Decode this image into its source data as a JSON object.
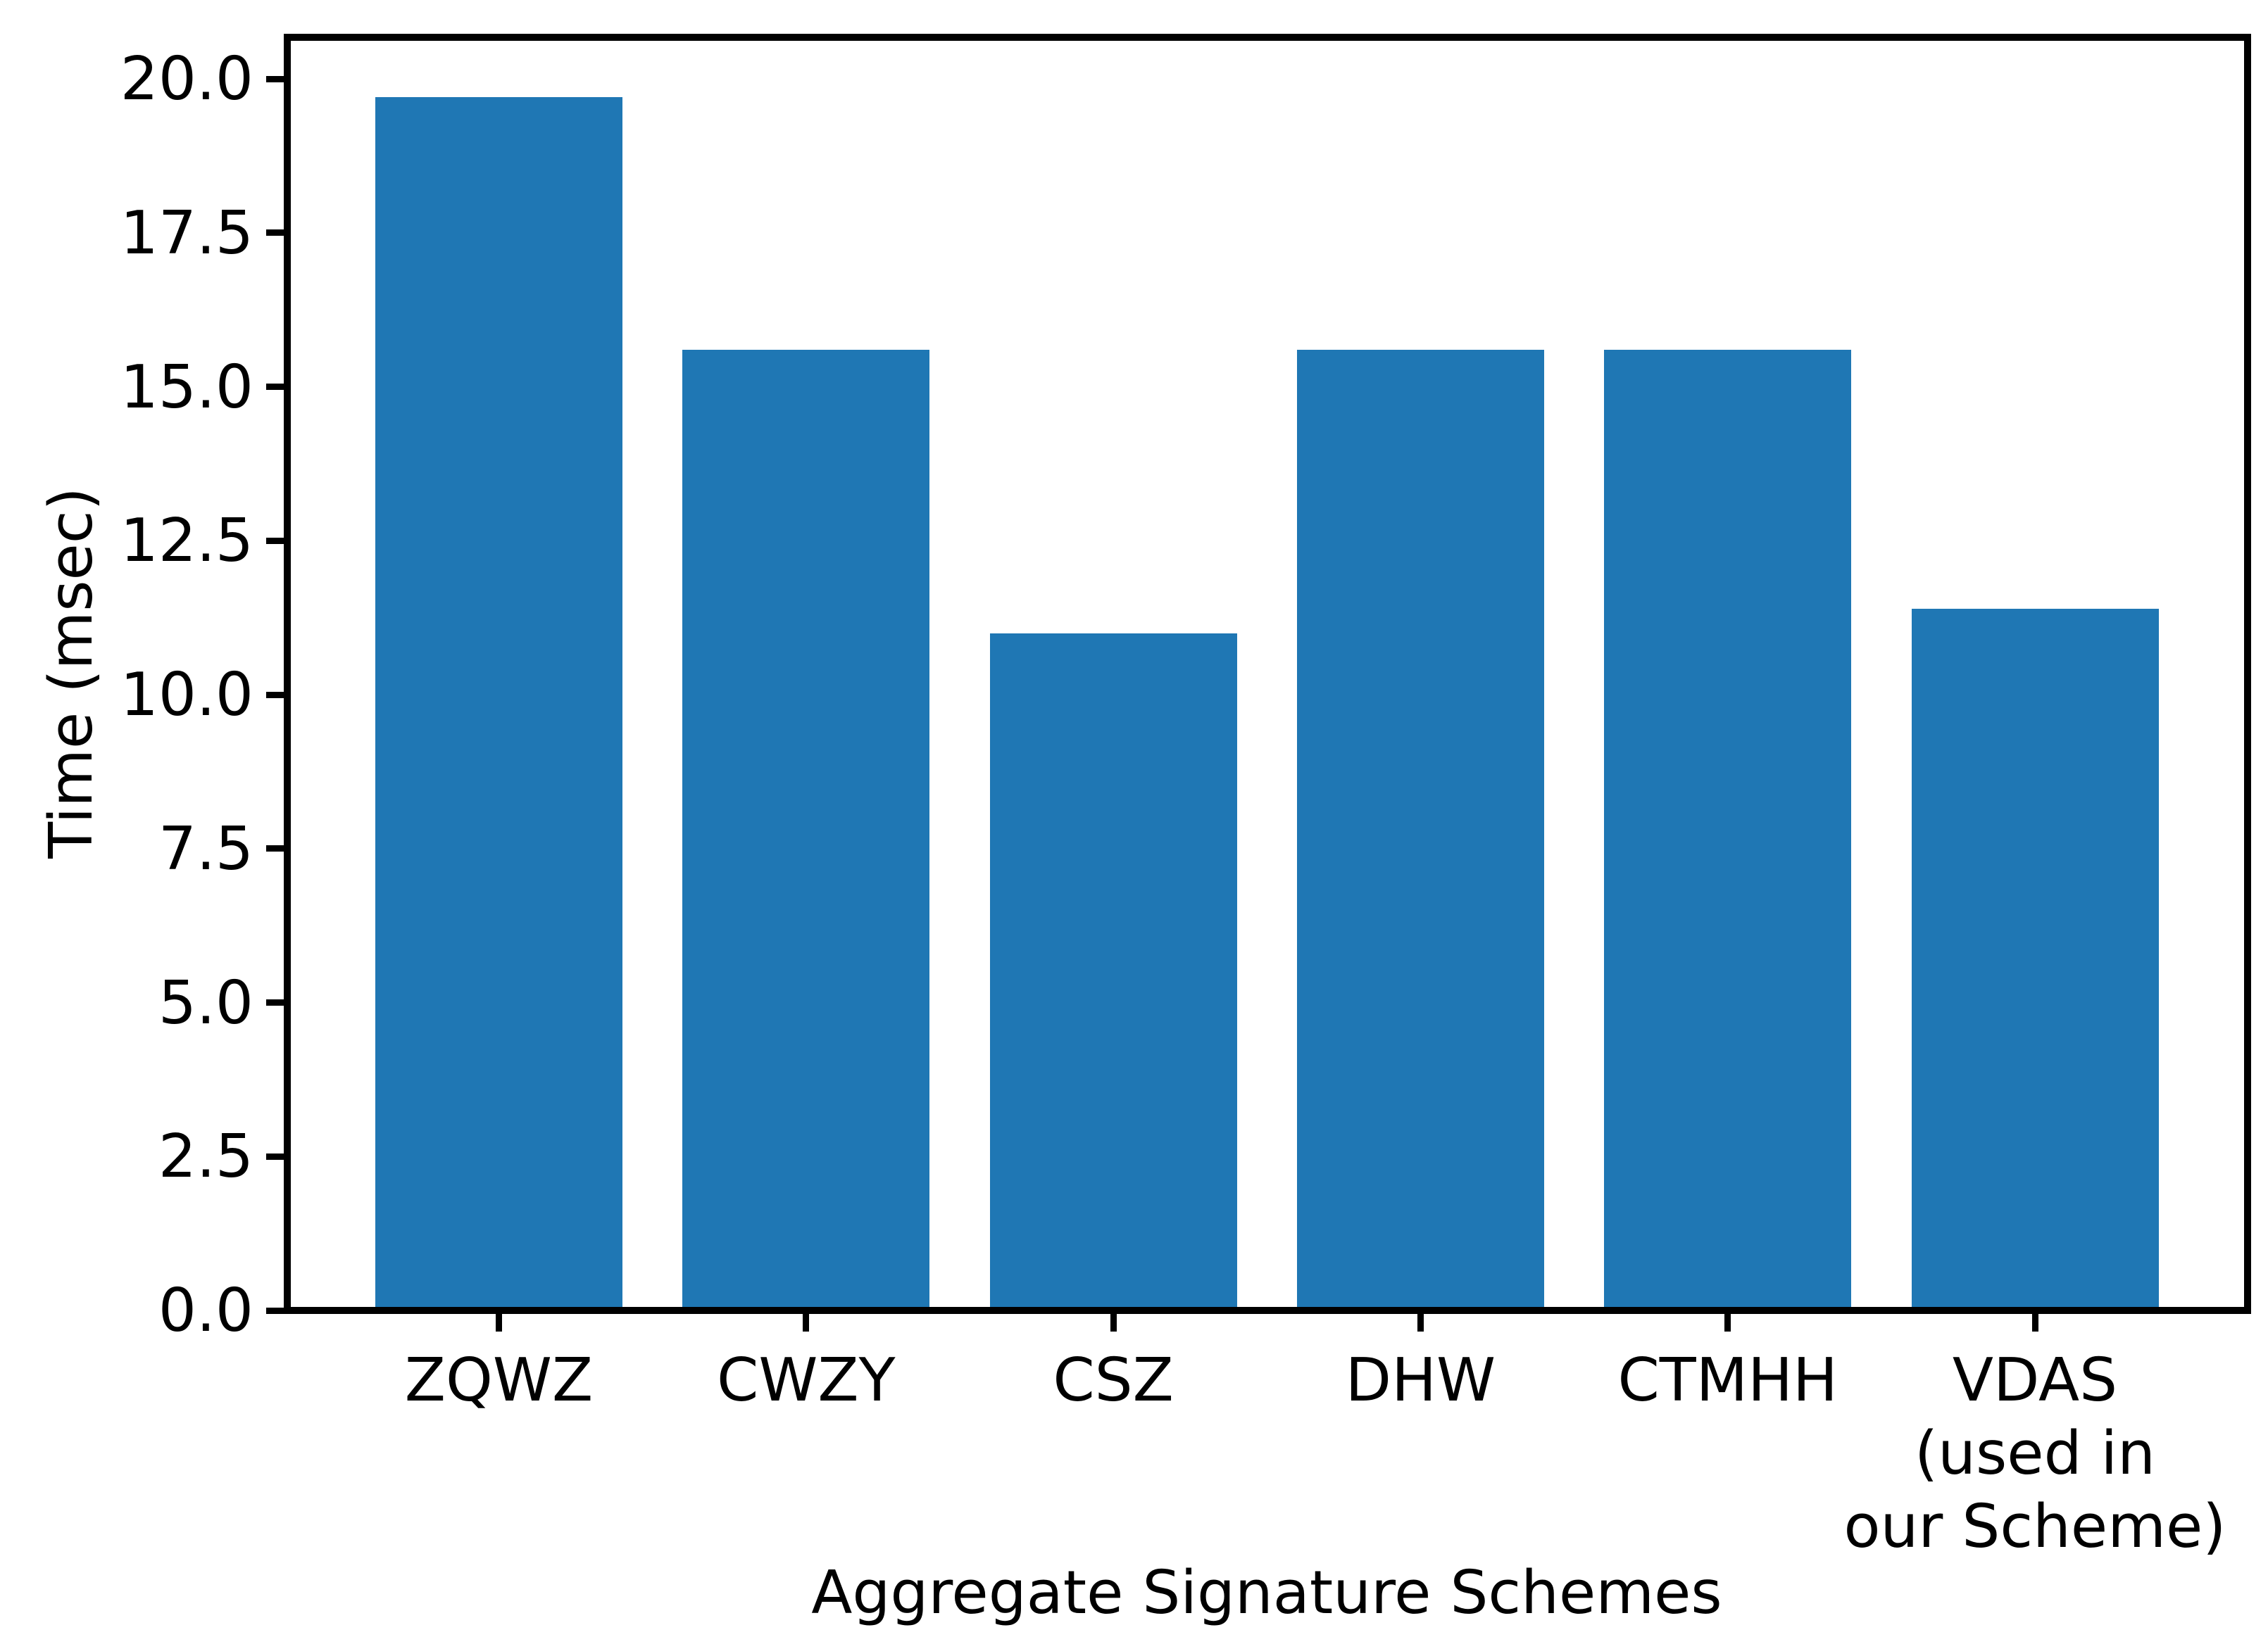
{
  "chart_data": {
    "type": "bar",
    "title": "",
    "xlabel": "Aggregate Signature Schemes",
    "ylabel": "Time (msec)",
    "categories": [
      "ZQWZ",
      "CWZY",
      "CSZ",
      "DHW",
      "CTMHH",
      "VDAS\n(used in\nour Scheme)"
    ],
    "values": [
      19.7,
      15.6,
      11.0,
      15.6,
      15.6,
      11.4
    ],
    "series_unit": "msec",
    "ylim": [
      0.0,
      20.7
    ],
    "yticks": [
      0.0,
      2.5,
      5.0,
      7.5,
      10.0,
      12.5,
      15.0,
      17.5,
      20.0
    ],
    "ytick_labels": [
      "0.0",
      "2.5",
      "5.0",
      "7.5",
      "10.0",
      "12.5",
      "15.0",
      "17.5",
      "20.0"
    ],
    "bar_color": "#1f77b4",
    "axis_color": "#000000",
    "background_color": "#ffffff",
    "grid": false,
    "legend_position": "none"
  }
}
